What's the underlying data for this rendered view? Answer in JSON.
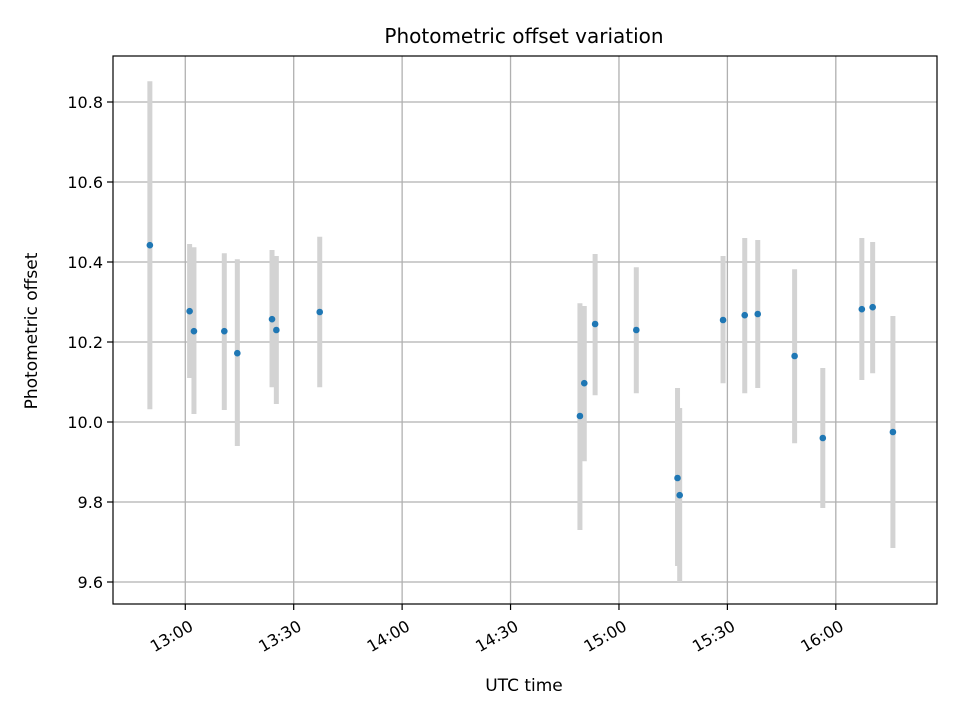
{
  "chart_data": {
    "type": "scatter",
    "title": "Photometric offset variation",
    "xlabel": "UTC time",
    "ylabel": "Photometric offset",
    "x_unit": "UTC time (HH:MM)",
    "xlim": [
      "12:40",
      "16:28"
    ],
    "ylim": [
      9.545,
      10.915
    ],
    "grid": true,
    "colors": {
      "point": "#1f77b4",
      "errorbar": "#d3d3d3",
      "grid": "#b0b0b0"
    },
    "xticks": [
      "13:00",
      "13:30",
      "14:00",
      "14:30",
      "15:00",
      "15:30",
      "16:00"
    ],
    "yticks": [
      "9.6",
      "9.8",
      "10.0",
      "10.2",
      "10.4",
      "10.6",
      "10.8"
    ],
    "points": [
      {
        "x": "12:50:12",
        "y": 10.442,
        "ylow": 10.032,
        "yhigh": 10.852
      },
      {
        "x": "13:01:12",
        "y": 10.277,
        "ylow": 10.11,
        "yhigh": 10.445
      },
      {
        "x": "13:02:24",
        "y": 10.227,
        "ylow": 10.02,
        "yhigh": 10.437
      },
      {
        "x": "13:10:48",
        "y": 10.227,
        "ylow": 10.03,
        "yhigh": 10.422
      },
      {
        "x": "13:14:24",
        "y": 10.172,
        "ylow": 9.94,
        "yhigh": 10.407
      },
      {
        "x": "13:24:00",
        "y": 10.257,
        "ylow": 10.087,
        "yhigh": 10.43
      },
      {
        "x": "13:25:12",
        "y": 10.23,
        "ylow": 10.045,
        "yhigh": 10.415
      },
      {
        "x": "13:37:12",
        "y": 10.275,
        "ylow": 10.087,
        "yhigh": 10.463
      },
      {
        "x": "14:49:12",
        "y": 10.015,
        "ylow": 9.73,
        "yhigh": 10.297
      },
      {
        "x": "14:50:24",
        "y": 10.097,
        "ylow": 9.902,
        "yhigh": 10.29
      },
      {
        "x": "14:53:24",
        "y": 10.245,
        "ylow": 10.067,
        "yhigh": 10.42
      },
      {
        "x": "15:04:48",
        "y": 10.23,
        "ylow": 10.072,
        "yhigh": 10.387
      },
      {
        "x": "15:16:12",
        "y": 9.86,
        "ylow": 9.64,
        "yhigh": 10.085
      },
      {
        "x": "15:16:48",
        "y": 9.817,
        "ylow": 9.6,
        "yhigh": 10.035
      },
      {
        "x": "15:28:48",
        "y": 10.255,
        "ylow": 10.097,
        "yhigh": 10.415
      },
      {
        "x": "15:34:48",
        "y": 10.267,
        "ylow": 10.072,
        "yhigh": 10.46
      },
      {
        "x": "15:38:24",
        "y": 10.27,
        "ylow": 10.085,
        "yhigh": 10.455
      },
      {
        "x": "15:48:36",
        "y": 10.165,
        "ylow": 9.947,
        "yhigh": 10.382
      },
      {
        "x": "15:56:24",
        "y": 9.96,
        "ylow": 9.785,
        "yhigh": 10.135
      },
      {
        "x": "16:07:12",
        "y": 10.282,
        "ylow": 10.105,
        "yhigh": 10.46
      },
      {
        "x": "16:10:12",
        "y": 10.287,
        "ylow": 10.122,
        "yhigh": 10.45
      },
      {
        "x": "16:15:48",
        "y": 9.975,
        "ylow": 9.685,
        "yhigh": 10.265
      }
    ]
  }
}
